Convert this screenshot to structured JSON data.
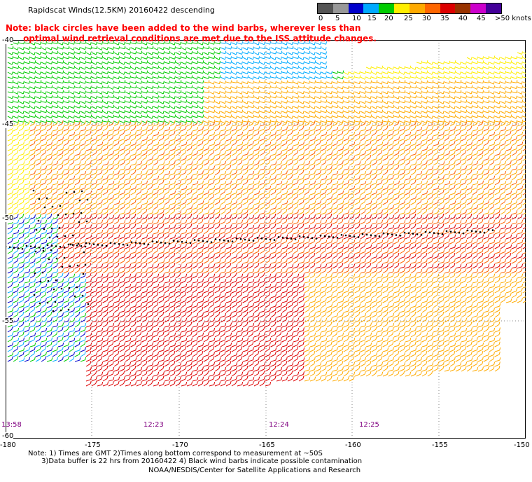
{
  "title": "Rapidscat Winds(12.5KM) 20160422 descending",
  "note_line1": "Note: black circles have been added to the wind barbs, wherever less than",
  "note_line2": "      optimal wind retrieval conditions are met due to the ISS attitude changes.",
  "scale": {
    "colors": [
      "#555555",
      "#999999",
      "#0000cc",
      "#00aaff",
      "#00cc00",
      "#ffee00",
      "#ffaa00",
      "#ff6600",
      "#dd0000",
      "#993300",
      "#cc00cc",
      "#440099"
    ],
    "labels": [
      "0",
      "5",
      "10",
      "15",
      "20",
      "25",
      "30",
      "35",
      "40",
      "45",
      ">50 knots"
    ]
  },
  "axes": {
    "x_ticks": [
      "-180",
      "-175",
      "-170",
      "-165",
      "-160",
      "-155",
      "-150"
    ],
    "y_ticks": [
      "-40",
      "-45",
      "-50",
      "-55",
      "-60"
    ]
  },
  "time_labels": [
    "13:58",
    "12:23",
    "12:24",
    "12:25"
  ],
  "footnote_line1": "Note: 1) Times are GMT 2)Times along bottom correspond to measurement at ~50S",
  "footnote_line2": "      3)Data buffer is 22 hrs from 20160422 4) Black wind barbs indicate possible contamination",
  "credit": "NOAA/NESDIS/Center for Satellite Applications and Research"
}
